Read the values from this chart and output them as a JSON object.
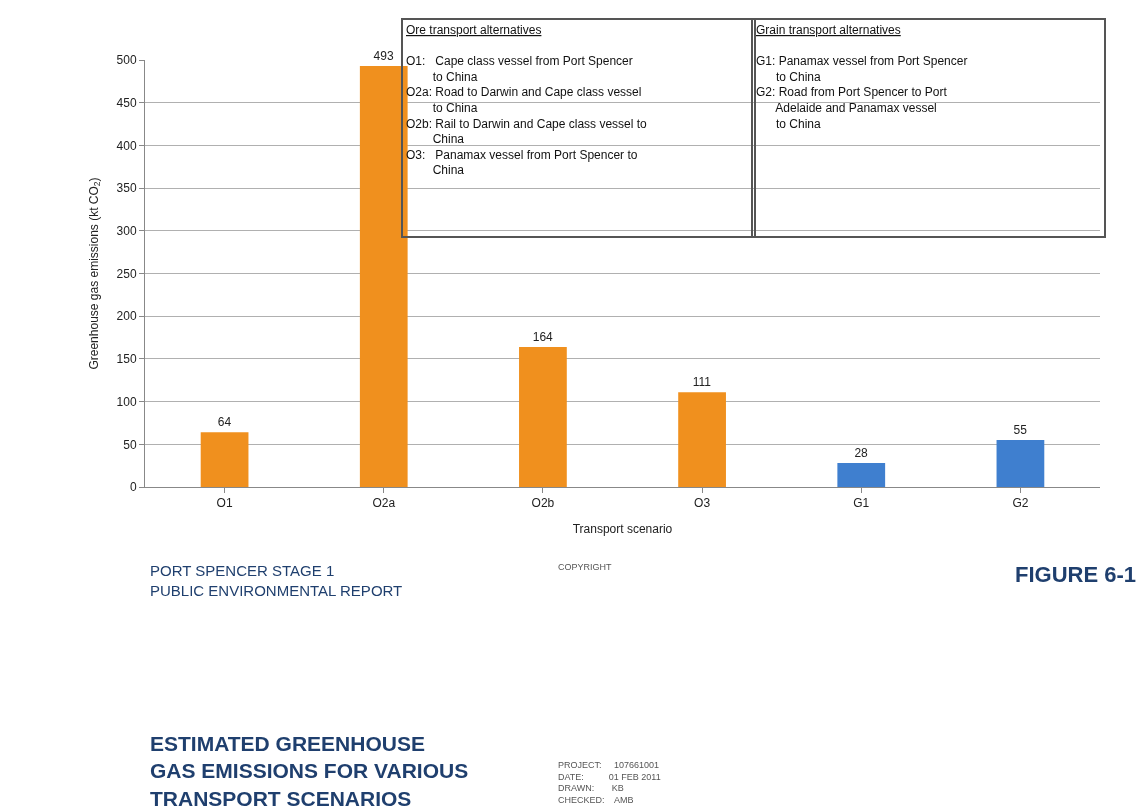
{
  "chart_data": {
    "type": "bar",
    "xlabel": "Transport scenario",
    "ylabel": "Greenhouse gas emissions (kt CO$_{2}$)",
    "categories": [
      "O1",
      "O2a",
      "O2b",
      "O3",
      "G1",
      "G2"
    ],
    "values": [
      64,
      493,
      164,
      111,
      28,
      55
    ],
    "colors": [
      "#f0901e",
      "#f0901e",
      "#f0901e",
      "#f0901e",
      "#3f7fcf",
      "#3f7fcf"
    ],
    "ylim": [
      0,
      500
    ],
    "yticks": [
      0,
      50,
      100,
      150,
      200,
      250,
      300,
      350,
      400,
      450,
      500
    ],
    "grid": "y",
    "data_labels": true,
    "annotations": [
      "Ore transport alternatives\nO1:   Cape class vessel from Port Spencer\n        to China\nO2a: Road to Darwin and Cape class vessel\n        to China\nO2b: Rail to Darwin and Cape class vessel to\n        China\nO3:   Panamax vessel from Port Spencer to\n        China",
      "Grain transport alternatives\nG1: Panamax vessel from Port Spencer\n      to China\nG2: Road from Port Spencer to Port\n      Adelaide and Panamax vessel\n      to China",
      "PORT SPENCER STAGE 1\nPUBLIC ENVIRONMENTAL REPORT",
      "COPYRIGHT",
      "FIGURE 6-1",
      "ESTIMATED GREENHOUSE\nGAS EMISSIONS FOR VARIOUS\nTRANSPORT SCENARIOS",
      "PROJECT:     107661001\nDATE:          01 FEB 2011\nDRAWN:       KB\nCHECKED:    AMB"
    ]
  }
}
